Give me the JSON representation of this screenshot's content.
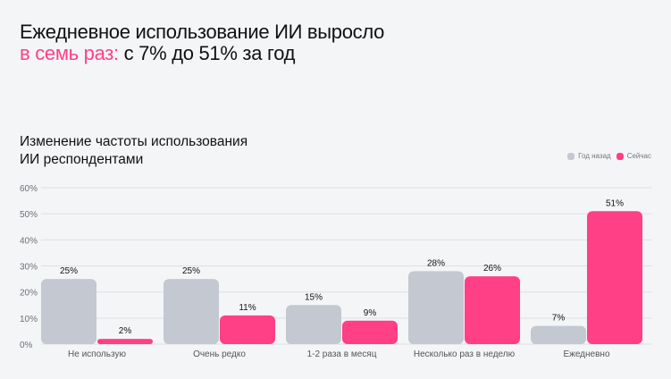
{
  "header": {
    "title_line1": "Ежедневное использование ИИ выросло",
    "title_accent": "в семь раз:",
    "title_line2_rest": " с 7% до 51% за год"
  },
  "chart_data": {
    "type": "bar",
    "title": "Изменение частоты использования ИИ респондентами",
    "title_line1": "Изменение частоты использования",
    "title_line2": "ИИ респондентами",
    "categories": [
      "Не использую",
      "Очень редко",
      "1-2 раза в месяц",
      "Несколько раз в неделю",
      "Ежедневно"
    ],
    "series": [
      {
        "name": "Год назад",
        "values": [
          25,
          25,
          15,
          28,
          7
        ],
        "color": "#c3c8d1"
      },
      {
        "name": "Сейчас",
        "values": [
          2,
          11,
          9,
          26,
          51
        ],
        "color": "#ff3f86"
      }
    ],
    "ylim": [
      0,
      60
    ],
    "yticks": [
      0,
      10,
      20,
      30,
      40,
      50,
      60
    ],
    "value_suffix": "%",
    "grid": true,
    "legend_position": "top-right"
  }
}
